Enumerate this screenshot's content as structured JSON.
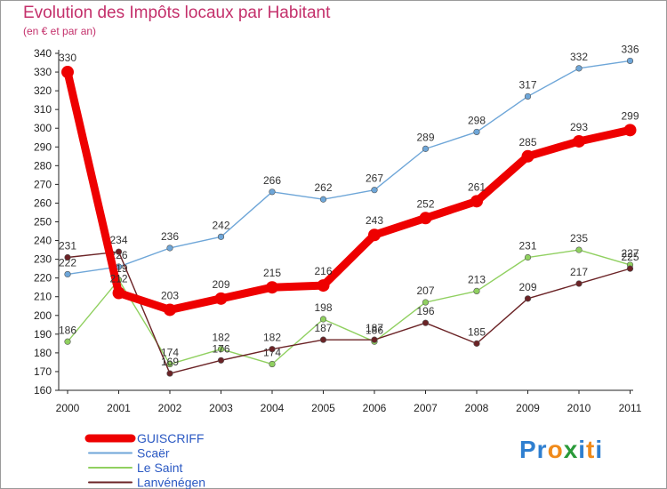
{
  "title": "Evolution des Impôts locaux par Habitant",
  "subtitle": "(en € et par an)",
  "logo_text": "Proxiti",
  "chart_data": {
    "type": "line",
    "title": "Evolution des Impôts locaux par Habitant",
    "subtitle": "(en € et par an)",
    "xlabel": "",
    "ylabel": "",
    "ylim": [
      160,
      340
    ],
    "ytick_step": 10,
    "grid": false,
    "legend_position": "bottom-left",
    "x": [
      "2000",
      "2001",
      "2002",
      "2003",
      "2004",
      "2005",
      "2006",
      "2007",
      "2008",
      "2009",
      "2010",
      "2011"
    ],
    "series": [
      {
        "name": "GUISCRIFF",
        "color": "#ee0000",
        "values": [
          330,
          212,
          203,
          209,
          215,
          216,
          243,
          252,
          261,
          285,
          293,
          299
        ],
        "labels": [
          "330",
          "212",
          "203",
          "209",
          "215",
          "216",
          "243",
          "252",
          "261",
          "285",
          "293",
          "299"
        ]
      },
      {
        "name": "Scaër",
        "color": "#6ea6d8",
        "values": [
          222,
          226,
          236,
          242,
          266,
          262,
          267,
          289,
          298,
          317,
          332,
          336
        ],
        "labels": [
          "222",
          "226",
          "236",
          "242",
          "266",
          "262",
          "267",
          "289",
          "298",
          "317",
          "332",
          "336"
        ]
      },
      {
        "name": "Le Saint",
        "color": "#90d060",
        "values": [
          186,
          219,
          174,
          182,
          174,
          198,
          186,
          207,
          213,
          231,
          235,
          227
        ],
        "labels": [
          "186",
          "219",
          "174",
          "182",
          "174",
          "198",
          "186",
          "207",
          "213",
          "231",
          "235",
          "227"
        ]
      },
      {
        "name": "Lanvénégen",
        "color": "#6b2326",
        "values": [
          231,
          234,
          169,
          176,
          182,
          187,
          187,
          196,
          185,
          209,
          217,
          225
        ],
        "labels": [
          "231",
          "234",
          "169",
          "176",
          "182",
          "187",
          "187",
          "196",
          "185",
          "209",
          "217",
          "225"
        ]
      }
    ]
  }
}
